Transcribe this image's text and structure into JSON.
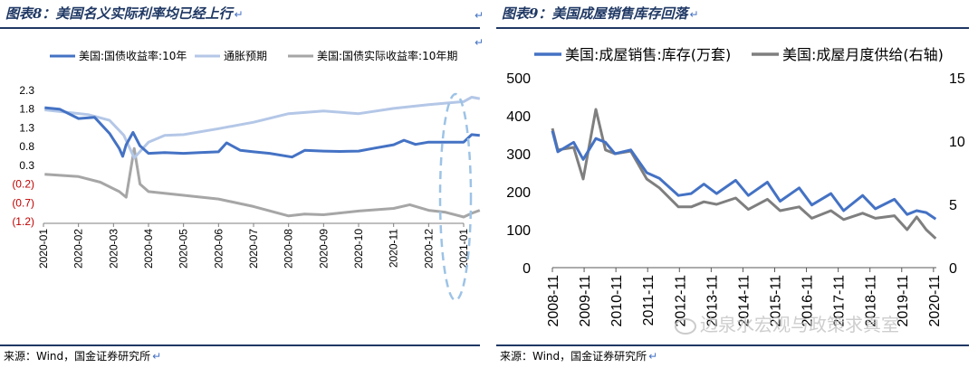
{
  "chart_data": [
    {
      "type": "line",
      "title": "图表8：美国名义实际利率均已经上行",
      "xlabel": "",
      "ylabel": "",
      "x_tick_labels": [
        "2020-01",
        "2020-02",
        "2020-03",
        "2020-04",
        "2020-05",
        "2020-06",
        "2020-07",
        "2020-08",
        "2020-09",
        "2020-10",
        "2020-11",
        "2020-12",
        "2021-01"
      ],
      "y_tick_labels": [
        "2.3",
        "1.8",
        "1.3",
        "0.8",
        "0.3",
        "(0.2)",
        "(0.7)",
        "(1.2)"
      ],
      "ylim": [
        -1.2,
        2.3
      ],
      "legend_position": "top",
      "series": [
        {
          "name": "美国:国债收益率:10年",
          "color": "#4472c4",
          "x": [
            "2020-01-02",
            "2020-01-15",
            "2020-02-01",
            "2020-02-15",
            "2020-02-28",
            "2020-03-06",
            "2020-03-09",
            "2020-03-12",
            "2020-03-18",
            "2020-03-24",
            "2020-04-01",
            "2020-04-15",
            "2020-05-01",
            "2020-05-15",
            "2020-06-01",
            "2020-06-08",
            "2020-06-20",
            "2020-07-01",
            "2020-07-15",
            "2020-08-04",
            "2020-08-15",
            "2020-09-01",
            "2020-09-15",
            "2020-10-01",
            "2020-10-15",
            "2020-11-01",
            "2020-11-10",
            "2020-11-20",
            "2020-12-01",
            "2020-12-15",
            "2021-01-01",
            "2021-01-08",
            "2021-01-15"
          ],
          "values": [
            1.84,
            1.8,
            1.55,
            1.58,
            1.15,
            0.75,
            0.54,
            0.85,
            1.18,
            0.82,
            0.62,
            0.64,
            0.62,
            0.64,
            0.66,
            0.9,
            0.7,
            0.66,
            0.62,
            0.52,
            0.7,
            0.68,
            0.67,
            0.68,
            0.76,
            0.85,
            0.97,
            0.86,
            0.92,
            0.92,
            0.92,
            1.12,
            1.1
          ]
        },
        {
          "name": "通胀预期",
          "color": "#b4c7e7",
          "x": [
            "2020-01-02",
            "2020-01-20",
            "2020-02-10",
            "2020-02-28",
            "2020-03-10",
            "2020-03-19",
            "2020-04-01",
            "2020-04-15",
            "2020-05-01",
            "2020-06-01",
            "2020-07-01",
            "2020-08-01",
            "2020-09-01",
            "2020-10-01",
            "2020-11-01",
            "2020-12-01",
            "2021-01-01",
            "2021-01-08",
            "2021-01-15"
          ],
          "values": [
            1.78,
            1.72,
            1.65,
            1.5,
            1.1,
            0.5,
            0.92,
            1.1,
            1.12,
            1.28,
            1.45,
            1.68,
            1.75,
            1.68,
            1.82,
            1.92,
            2.0,
            2.12,
            2.08
          ]
        },
        {
          "name": "美国:国债实际收益率:10年期",
          "color": "#a6a6a6",
          "x": [
            "2020-01-02",
            "2020-02-01",
            "2020-02-20",
            "2020-03-06",
            "2020-03-12",
            "2020-03-19",
            "2020-03-24",
            "2020-04-01",
            "2020-05-01",
            "2020-06-01",
            "2020-07-01",
            "2020-08-01",
            "2020-08-15",
            "2020-09-01",
            "2020-10-01",
            "2020-11-01",
            "2020-11-15",
            "2020-12-01",
            "2020-12-15",
            "2021-01-01",
            "2021-01-08",
            "2021-01-15"
          ],
          "values": [
            0.06,
            0.0,
            -0.15,
            -0.4,
            -0.55,
            0.75,
            -0.2,
            -0.4,
            -0.5,
            -0.6,
            -0.8,
            -1.05,
            -1.0,
            -1.02,
            -0.92,
            -0.85,
            -0.75,
            -0.9,
            -0.95,
            -1.08,
            -0.98,
            -0.9
          ]
        }
      ],
      "annotation": "dashed-ellipse-around-2021-01"
    },
    {
      "type": "line",
      "title": "图表9：美国成屋销售库存回落",
      "xlabel": "",
      "ylabel": "",
      "x_tick_labels": [
        "2008-11",
        "2009-11",
        "2010-11",
        "2011-11",
        "2012-11",
        "2013-11",
        "2014-11",
        "2015-11",
        "2016-11",
        "2017-11",
        "2018-11",
        "2019-11",
        "2020-11"
      ],
      "y_left_tick_labels": [
        "500",
        "400",
        "300",
        "200",
        "100",
        "0"
      ],
      "y_right_tick_labels": [
        "15",
        "10",
        "5",
        "0"
      ],
      "ylim_left": [
        0,
        500
      ],
      "ylim_right": [
        0,
        15
      ],
      "legend_position": "top",
      "series": [
        {
          "name": "美国:成屋销售:库存(万套)",
          "axis": "left",
          "color": "#4472c4",
          "x": [
            2008.83,
            2009.0,
            2009.5,
            2009.8,
            2010.2,
            2010.5,
            2010.8,
            2011.3,
            2011.8,
            2012.2,
            2012.8,
            2013.2,
            2013.6,
            2014.0,
            2014.6,
            2015.0,
            2015.6,
            2016.0,
            2016.6,
            2017.0,
            2017.6,
            2018.0,
            2018.6,
            2019.0,
            2019.6,
            2020.0,
            2020.3,
            2020.6,
            2020.9
          ],
          "values": [
            360,
            305,
            330,
            285,
            340,
            330,
            300,
            310,
            250,
            235,
            190,
            195,
            220,
            195,
            230,
            190,
            225,
            175,
            210,
            165,
            195,
            150,
            190,
            155,
            180,
            140,
            150,
            145,
            128
          ]
        },
        {
          "name": "美国:成屋月度供给(右轴)",
          "axis": "right",
          "color": "#7f7f7f",
          "x": [
            2008.83,
            2009.0,
            2009.5,
            2009.8,
            2010.2,
            2010.5,
            2010.8,
            2011.3,
            2011.8,
            2012.2,
            2012.8,
            2013.2,
            2013.6,
            2014.0,
            2014.6,
            2015.0,
            2015.6,
            2016.0,
            2016.6,
            2017.0,
            2017.6,
            2018.0,
            2018.6,
            2019.0,
            2019.6,
            2020.0,
            2020.3,
            2020.6,
            2020.9
          ],
          "values": [
            11.0,
            9.3,
            9.5,
            7.0,
            12.5,
            9.3,
            9.0,
            9.2,
            7.0,
            6.3,
            4.8,
            4.8,
            5.2,
            5.0,
            5.5,
            4.6,
            5.4,
            4.5,
            4.8,
            3.9,
            4.5,
            3.8,
            4.3,
            3.9,
            4.1,
            3.0,
            4.0,
            3.0,
            2.3
          ]
        }
      ]
    }
  ],
  "figures": {
    "left": {
      "title": "图表8：美国名义实际利率均已经上行",
      "source": "来源：Wind，国金证券研究所"
    },
    "right": {
      "title": "图表9：美国成屋销售库存回落",
      "source": "来源：Wind，国金证券研究所"
    }
  },
  "watermark": "边泉水宏观与政策求真室",
  "return_mark": "↵",
  "colors": {
    "title_navy": "#1f3864",
    "accent_blue": "#4472c4",
    "negative_red": "#c00000"
  }
}
